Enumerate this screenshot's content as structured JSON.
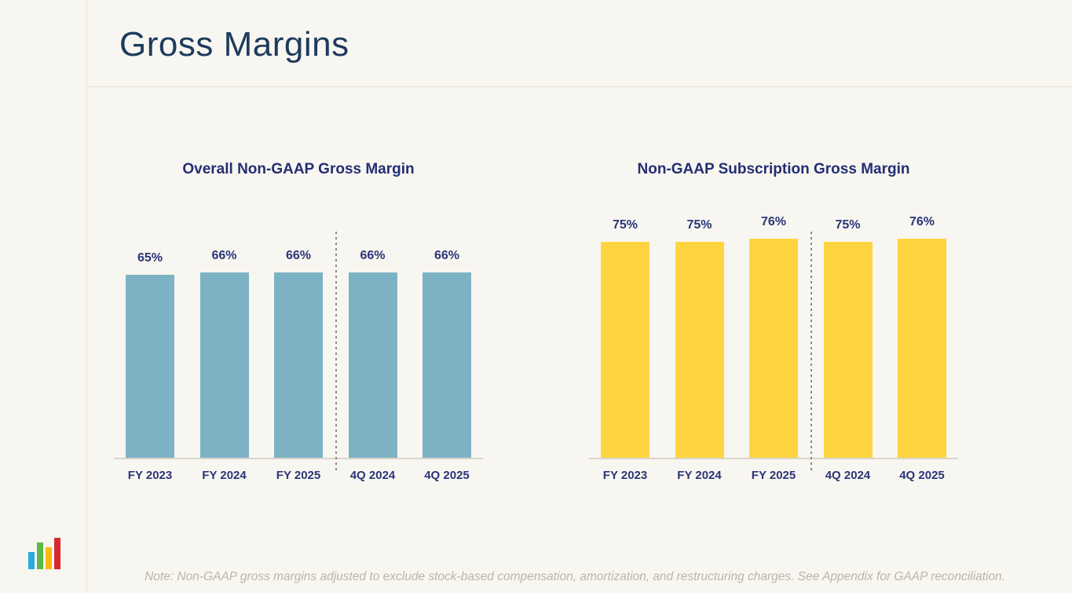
{
  "slide": {
    "title": "Gross Margins",
    "note": "Note: Non-GAAP gross margins adjusted to exclude stock-based compensation, amortization, and restructuring charges. See Appendix for GAAP reconciliation."
  },
  "colors": {
    "background": "#f8f6f0",
    "title_navy": "#1d3b5e",
    "chart_text_indigo": "#2a3578",
    "bar_blue": "#7db2c5",
    "bar_yellow": "#fed540",
    "divider_line": "#e6e2d9",
    "axis_line": "#d9d5cd",
    "dashed_separator": "#8a8a8a",
    "note_gray": "#b9b5ac",
    "logo_colors": [
      "#2ba9e0",
      "#5cb847",
      "#fdb813",
      "#d7282f"
    ]
  },
  "logo": {
    "icon": "bar-chart-logo"
  },
  "chart_data": [
    {
      "type": "bar",
      "title": "Overall Non-GAAP Gross Margin",
      "categories": [
        "FY 2023",
        "FY 2024",
        "FY 2025",
        "4Q 2024",
        "4Q 2025"
      ],
      "values": [
        65,
        66,
        66,
        66,
        66
      ],
      "value_labels": [
        "65%",
        "66%",
        "66%",
        "66%",
        "66%"
      ],
      "bar_color": "#7db2c5",
      "ylim": [
        0,
        81
      ],
      "xlabel": "",
      "ylabel": "",
      "grid": false,
      "legend": false,
      "separator_after_index": 2
    },
    {
      "type": "bar",
      "title": "Non-GAAP Subscription Gross Margin",
      "categories": [
        "FY 2023",
        "FY 2024",
        "FY 2025",
        "4Q 2024",
        "4Q 2025"
      ],
      "values": [
        75,
        75,
        76,
        75,
        76
      ],
      "value_labels": [
        "75%",
        "75%",
        "76%",
        "75%",
        "76%"
      ],
      "bar_color": "#fed540",
      "ylim": [
        0,
        79
      ],
      "xlabel": "",
      "ylabel": "",
      "grid": false,
      "legend": false,
      "separator_after_index": 2
    }
  ]
}
